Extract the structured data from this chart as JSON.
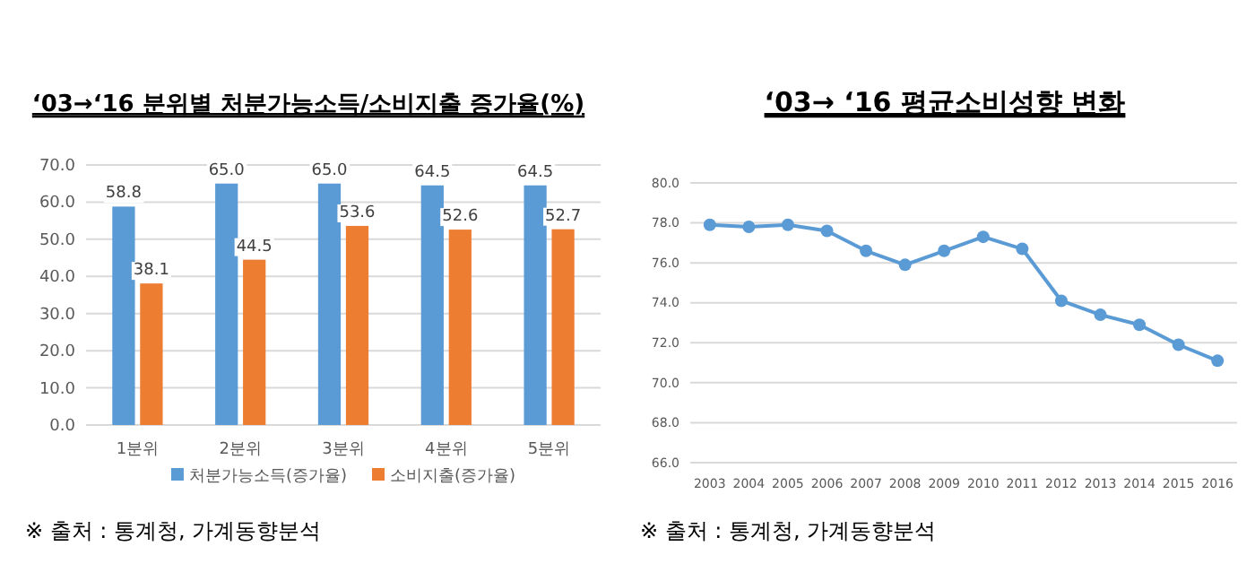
{
  "chart_data": [
    {
      "type": "bar",
      "title": "‘03→‘16 분위별 처분가능소득/소비지출 증가율(%)",
      "categories": [
        "1분위",
        "2분위",
        "3분위",
        "4분위",
        "5분위"
      ],
      "series": [
        {
          "name": "처분가능소득(증가율)",
          "color": "#5b9bd5",
          "values": [
            58.8,
            65.0,
            65.0,
            64.5,
            64.5
          ],
          "value_labels": [
            "58.8",
            "65.0",
            "65.0",
            "64.5",
            "64.5"
          ]
        },
        {
          "name": "소비지출(증가율)",
          "color": "#ed7d31",
          "values": [
            38.1,
            44.5,
            53.6,
            52.6,
            52.7
          ],
          "value_labels": [
            "38.1",
            "44.5",
            "53.6",
            "52.6",
            "52.7"
          ]
        }
      ],
      "ylim": [
        0,
        70
      ],
      "yticks": [
        {
          "value": 0,
          "label": "0.0"
        },
        {
          "value": 10,
          "label": "10.0"
        },
        {
          "value": 20,
          "label": "20.0"
        },
        {
          "value": 30,
          "label": "30.0"
        },
        {
          "value": 40,
          "label": "40.0"
        },
        {
          "value": 50,
          "label": "50.0"
        },
        {
          "value": 60,
          "label": "60.0"
        },
        {
          "value": 70,
          "label": "70.0"
        }
      ],
      "grid": "y",
      "legend": "bottom",
      "annotations": [
        "※ 출처 : 통계청, 가계동향분석"
      ]
    },
    {
      "type": "line",
      "title": "‘03→ ‘16 평균소비성향 변화",
      "categories": [
        "2003",
        "2004",
        "2005",
        "2006",
        "2007",
        "2008",
        "2009",
        "2010",
        "2011",
        "2012",
        "2013",
        "2014",
        "2015",
        "2016"
      ],
      "series": [
        {
          "color": "#5b9bd5",
          "values": [
            77.9,
            77.8,
            77.9,
            77.6,
            76.6,
            75.9,
            76.6,
            77.3,
            76.7,
            74.1,
            73.4,
            72.9,
            71.9,
            71.1
          ]
        }
      ],
      "ylim": [
        66,
        80
      ],
      "yticks": [
        {
          "value": 66,
          "label": "66.0"
        },
        {
          "value": 68,
          "label": "68.0"
        },
        {
          "value": 70,
          "label": "70.0"
        },
        {
          "value": 72,
          "label": "72.0"
        },
        {
          "value": 74,
          "label": "74.0"
        },
        {
          "value": 76,
          "label": "76.0"
        },
        {
          "value": 78,
          "label": "78.0"
        },
        {
          "value": 80,
          "label": "80.0"
        }
      ],
      "grid": "y",
      "marker": "circle",
      "annotations": [
        "※ 출처 : 통계청, 가계동향분석"
      ]
    }
  ]
}
